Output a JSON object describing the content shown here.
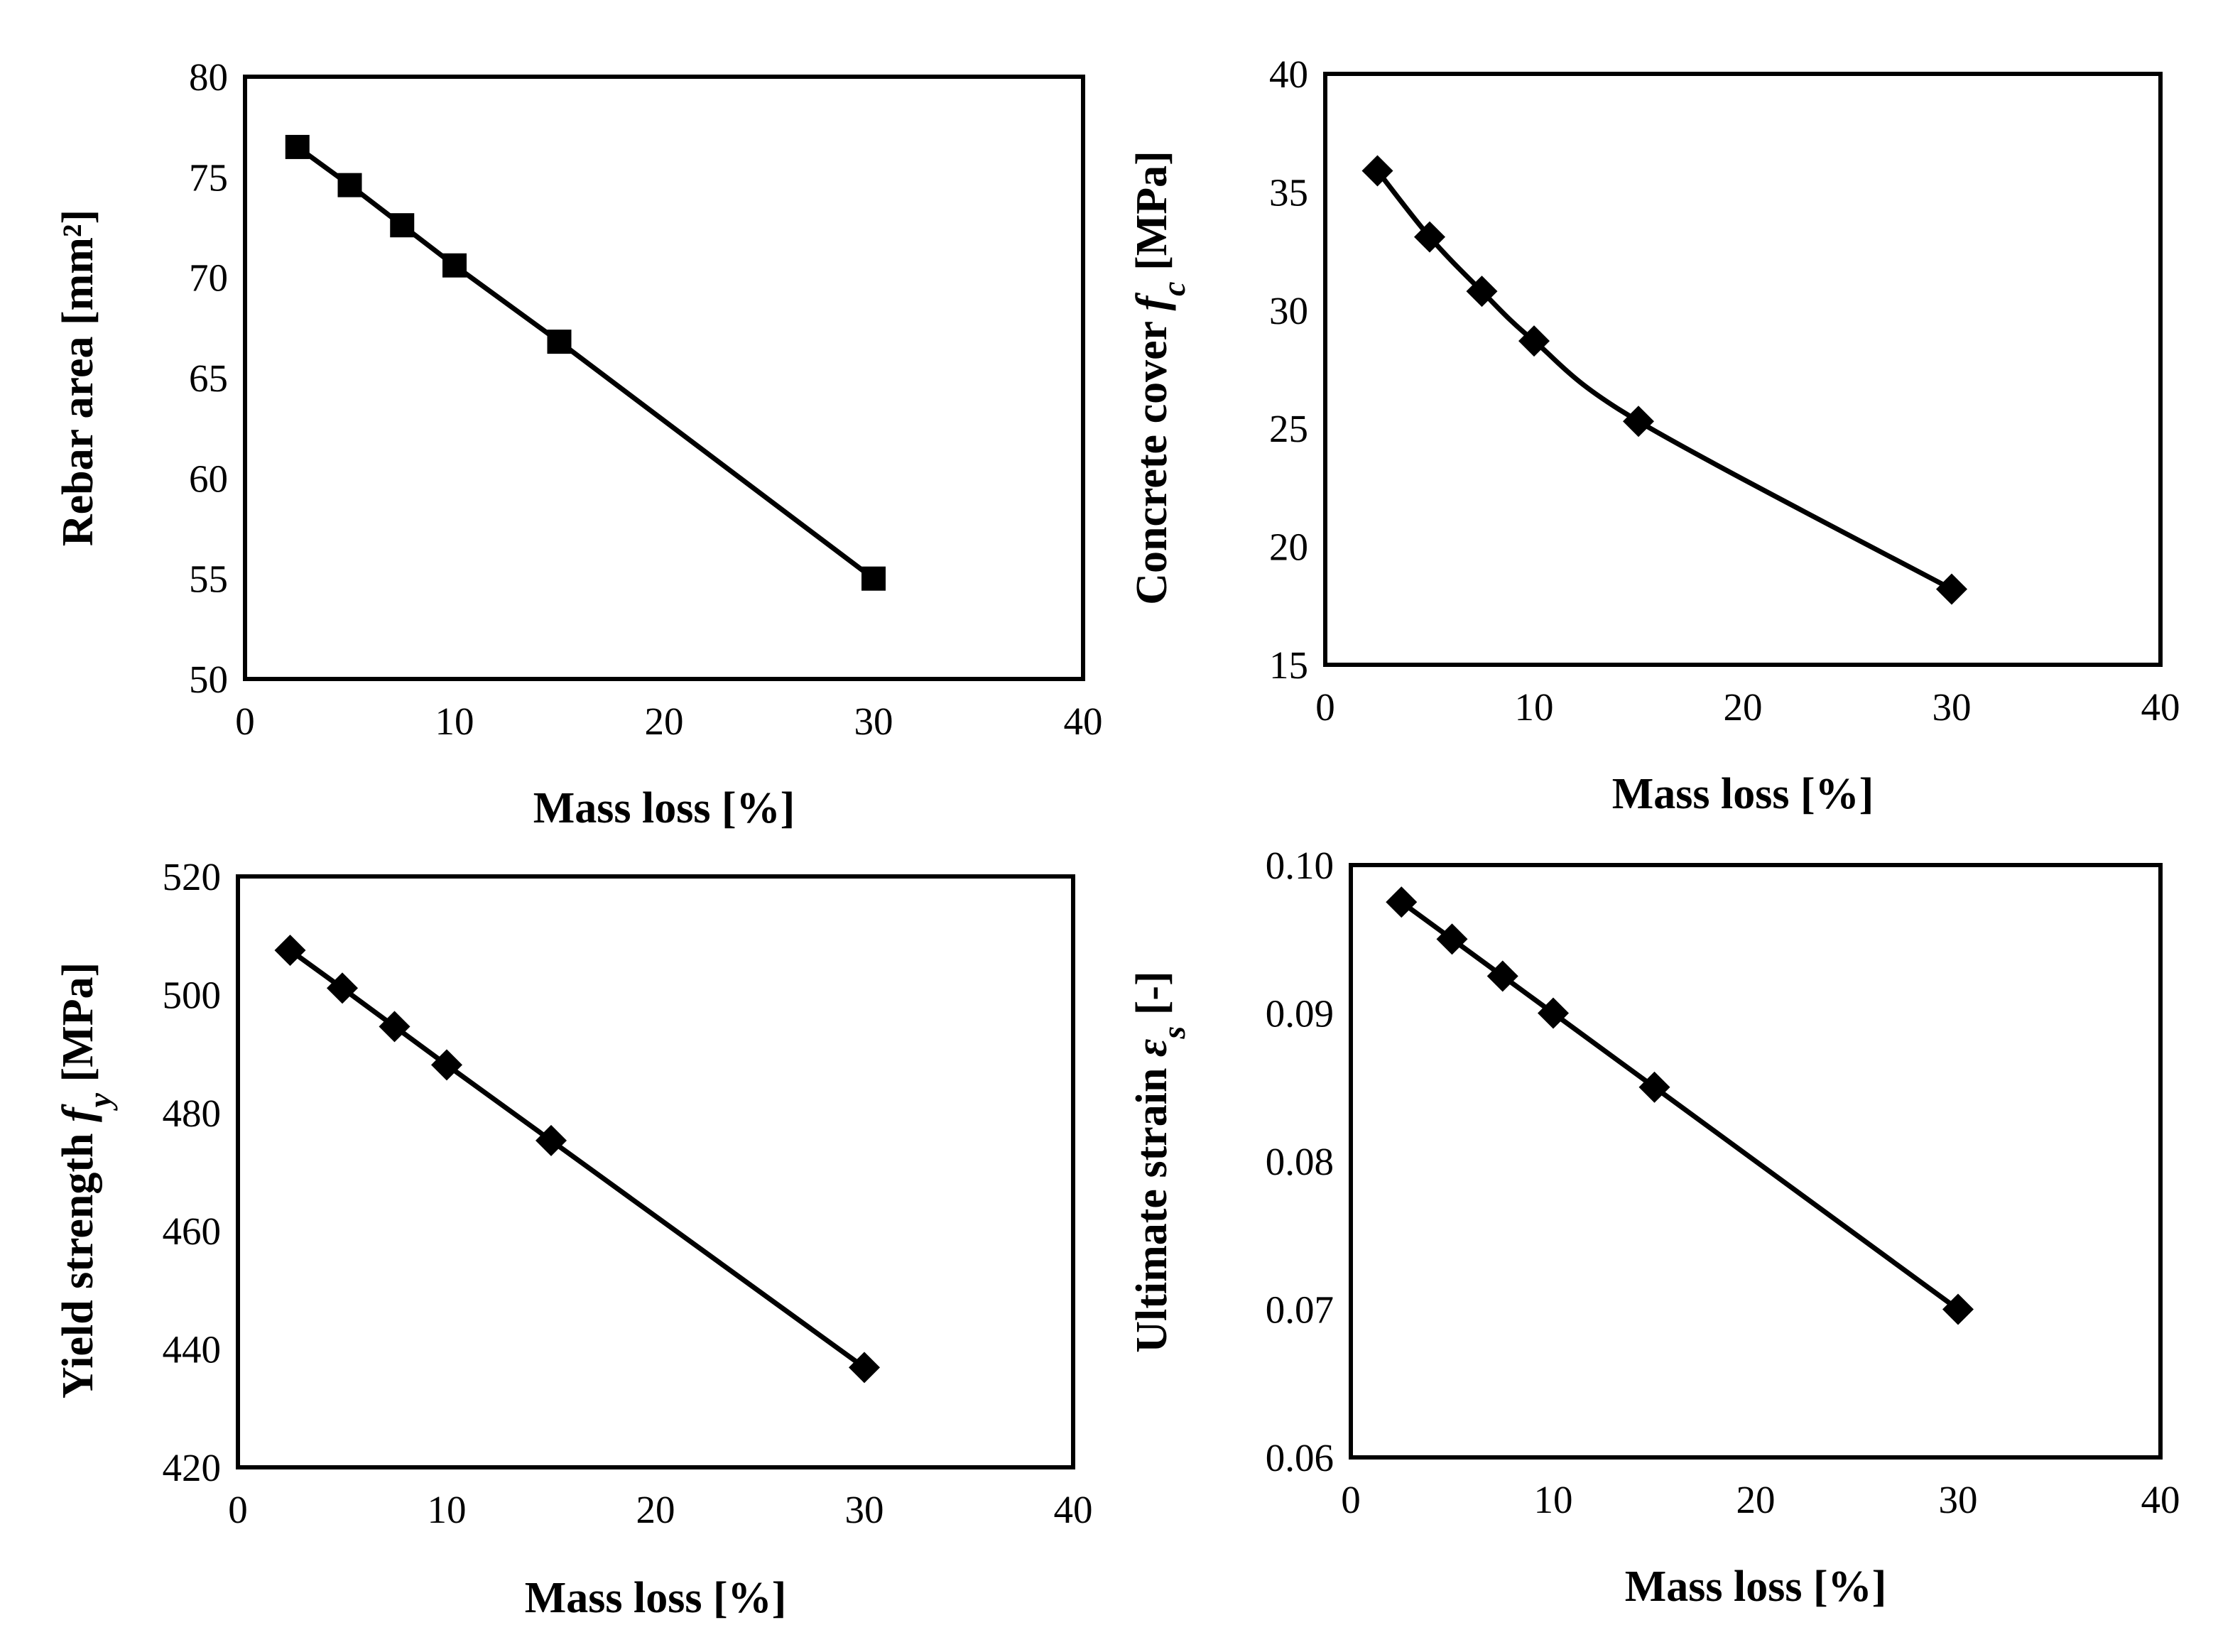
{
  "chart_data": [
    {
      "type": "line",
      "id": "rebar-area",
      "title": "",
      "xlabel": "Mass loss [%]",
      "ylabel": "Rebar area [mm²]",
      "ylabel_parts": [
        {
          "text": "Rebar area [mm²]",
          "italic": false
        }
      ],
      "xlim": [
        0,
        40
      ],
      "ylim": [
        50,
        80
      ],
      "xticks": [
        0,
        10,
        20,
        30,
        40
      ],
      "yticks": [
        50,
        55,
        60,
        65,
        70,
        75,
        80
      ],
      "y_decimals": 0,
      "grid": false,
      "marker": "square",
      "smooth": false,
      "x": [
        2.5,
        5,
        7.5,
        10,
        15,
        30
      ],
      "y": [
        76.5,
        74.6,
        72.6,
        70.6,
        66.8,
        55.0
      ]
    },
    {
      "type": "line",
      "id": "concrete-cover",
      "title": "",
      "xlabel": "Mass loss [%]",
      "ylabel": "Concrete cover fc [MPa]",
      "ylabel_parts": [
        {
          "text": "Concrete cover ",
          "italic": false
        },
        {
          "text": "f",
          "italic": true
        },
        {
          "text": "c",
          "italic": true,
          "sub": true
        },
        {
          "text": " [MPa]",
          "italic": false
        }
      ],
      "xlim": [
        0,
        40
      ],
      "ylim": [
        15,
        40
      ],
      "xticks": [
        0,
        10,
        20,
        30,
        40
      ],
      "yticks": [
        15,
        20,
        25,
        30,
        35,
        40
      ],
      "y_decimals": 0,
      "grid": false,
      "marker": "diamond",
      "smooth": true,
      "x": [
        2.5,
        5,
        7.5,
        10,
        15,
        30
      ],
      "y": [
        35.9,
        33.1,
        30.8,
        28.7,
        25.3,
        18.2
      ]
    },
    {
      "type": "line",
      "id": "yield-strength",
      "title": "",
      "xlabel": "Mass loss [%]",
      "ylabel": "Yield strength fy [MPa]",
      "ylabel_parts": [
        {
          "text": "Yield strength ",
          "italic": false
        },
        {
          "text": "f",
          "italic": true
        },
        {
          "text": "y",
          "italic": true,
          "sub": true
        },
        {
          "text": " [MPa]",
          "italic": false
        }
      ],
      "xlim": [
        0,
        40
      ],
      "ylim": [
        420,
        520
      ],
      "xticks": [
        0,
        10,
        20,
        30,
        40
      ],
      "yticks": [
        420,
        440,
        460,
        480,
        500,
        520
      ],
      "y_decimals": 0,
      "grid": false,
      "marker": "diamond",
      "smooth": false,
      "x": [
        2.5,
        5,
        7.5,
        10,
        15,
        30
      ],
      "y": [
        507.5,
        501.1,
        494.6,
        488.1,
        475.3,
        436.9
      ]
    },
    {
      "type": "line",
      "id": "ultimate-strain",
      "title": "",
      "xlabel": "Mass loss [%]",
      "ylabel": "Ultimate strain εs [-]",
      "ylabel_parts": [
        {
          "text": "Ultimate strain ",
          "italic": false
        },
        {
          "text": "ε",
          "italic": true
        },
        {
          "text": "s",
          "italic": true,
          "sub": true
        },
        {
          "text": " [-]",
          "italic": false
        }
      ],
      "xlim": [
        0,
        40
      ],
      "ylim": [
        0.06,
        0.1
      ],
      "xticks": [
        0,
        10,
        20,
        30,
        40
      ],
      "yticks": [
        0.06,
        0.07,
        0.08,
        0.09,
        0.1
      ],
      "y_decimals": 2,
      "grid": false,
      "marker": "diamond",
      "smooth": false,
      "x": [
        2.5,
        5,
        7.5,
        10,
        15,
        30
      ],
      "y": [
        0.0975,
        0.095,
        0.0925,
        0.09,
        0.085,
        0.07
      ]
    }
  ]
}
